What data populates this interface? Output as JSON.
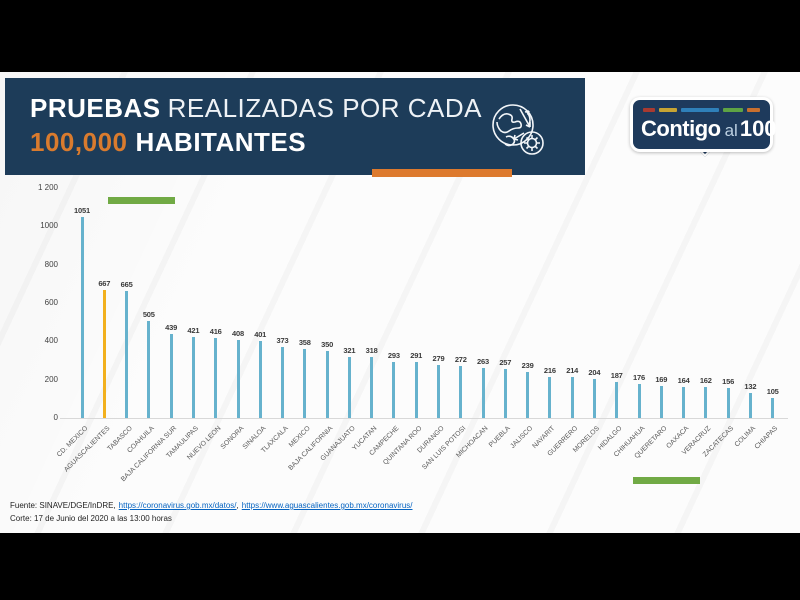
{
  "header": {
    "title_bold": "PRUEBAS",
    "title_rest": "REALIZADAS POR CADA",
    "title2_accent": "100,000",
    "title2_rest": "HABITANTES",
    "banner_color": "#1d3c59",
    "accent_color": "#dd7a2e"
  },
  "logo": {
    "word1": "Contigo",
    "word2": "al",
    "word3": "100",
    "dash_colors": [
      "#a93a31",
      "#c7a433",
      "#2f80b9",
      "#5ea344",
      "#c96f2e"
    ],
    "dash_widths": [
      13,
      19,
      40,
      21,
      14
    ]
  },
  "chart_data": {
    "type": "bar",
    "title": "Pruebas realizadas por cada 100,000 habitantes",
    "categories": [
      "CD. MEXICO",
      "AGUASCALIENTES",
      "TABASCO",
      "COAHUILA",
      "BAJA CALIFORNIA SUR",
      "TAMAULIPAS",
      "NUEVO LEON",
      "SONORA",
      "SINALOA",
      "TLAXCALA",
      "MEXICO",
      "BAJA CALIFORNIA",
      "GUANAJUATO",
      "YUCATAN",
      "CAMPECHE",
      "QUINTANA ROO",
      "DURANGO",
      "SAN LUIS POTOSI",
      "MICHOACAN",
      "PUEBLA",
      "JALISCO",
      "NAYARIT",
      "GUERRERO",
      "MORELOS",
      "HIDALGO",
      "CHIHUAHUA",
      "QUERETARO",
      "OAXACA",
      "VERACRUZ",
      "ZACATECAS",
      "COLIMA",
      "CHIAPAS"
    ],
    "values": [
      1051,
      667,
      665,
      505,
      439,
      421,
      416,
      408,
      401,
      373,
      358,
      350,
      321,
      318,
      293,
      291,
      279,
      272,
      263,
      257,
      239,
      216,
      214,
      204,
      187,
      176,
      169,
      164,
      162,
      156,
      132,
      105
    ],
    "highlight_index": 1,
    "bar_color": "#66b2cd",
    "highlight_color": "#f2b01d",
    "ylim": [
      0,
      1200
    ],
    "yticks": [
      {
        "value": 1200,
        "label": "1 200"
      },
      {
        "value": 1000,
        "label": "1000"
      },
      {
        "value": 800,
        "label": "800"
      },
      {
        "value": 600,
        "label": "600"
      },
      {
        "value": 400,
        "label": "400"
      },
      {
        "value": 200,
        "label": "200"
      },
      {
        "value": 0,
        "label": "0"
      }
    ],
    "grid": false,
    "legend": false,
    "green_marker_color": "#71aa45"
  },
  "footer": {
    "fuente_prefix": "Fuente: SINAVE/DGE/InDRE,",
    "link1": "https://coronavirus.gob.mx/datos/",
    "separator": ",",
    "link2": "https://www.aguascalientes.gob.mx/coronavirus/",
    "corte": "Corte: 17 de Junio del 2020 a las 13:00 horas"
  }
}
